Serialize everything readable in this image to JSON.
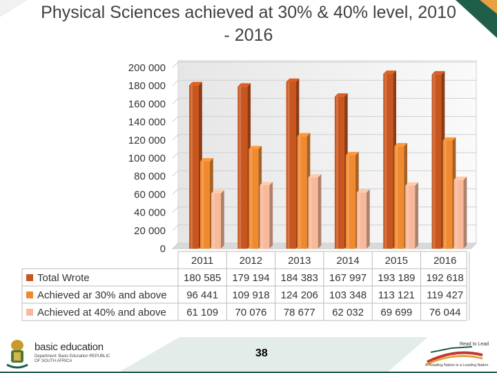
{
  "title": "Physical Sciences achieved at 30% & 40% level, 2010\n- 2016",
  "page_number": "38",
  "colors": {
    "total": "#c8561e",
    "achieved30": "#f08a30",
    "achieved40": "#f7b99a",
    "accent_green": "#1f5f4a"
  },
  "footer": {
    "left_brand": "basic education",
    "left_sub": "Department: Basic Education REPUBLIC OF SOUTH AFRICA",
    "right_label": "Read to Lead",
    "right_tagline": "A Reading Nation is a Leading Nation"
  },
  "chart_data": {
    "type": "bar",
    "categories": [
      "2011",
      "2012",
      "2013",
      "2014",
      "2015",
      "2016"
    ],
    "series": [
      {
        "name": "Total Wrote",
        "values": [
          180585,
          179194,
          184383,
          167997,
          193189,
          192618
        ],
        "labels": [
          "180 585",
          "179 194",
          "184 383",
          "167 997",
          "193 189",
          "192 618"
        ]
      },
      {
        "name": "Achieved ar 30% and above",
        "values": [
          96441,
          109918,
          124206,
          103348,
          113121,
          119427
        ],
        "labels": [
          "96 441",
          "109 918",
          "124 206",
          "103 348",
          "113 121",
          "119 427"
        ]
      },
      {
        "name": "Achieved at 40% and above",
        "values": [
          61109,
          70076,
          78677,
          62032,
          69699,
          76044
        ],
        "labels": [
          "61 109",
          "70 076",
          "78 677",
          "62 032",
          "69 699",
          "76 044"
        ]
      }
    ],
    "ylim": [
      0,
      200000
    ],
    "yticks": [
      0,
      20000,
      40000,
      60000,
      80000,
      100000,
      120000,
      140000,
      160000,
      180000,
      200000
    ],
    "ytick_labels": [
      "0",
      "20 000",
      "40 000",
      "60 000",
      "80 000",
      "100 000",
      "120 000",
      "140 000",
      "160 000",
      "180 000",
      "200 000"
    ],
    "grid": true,
    "legend": "data table below chart"
  }
}
